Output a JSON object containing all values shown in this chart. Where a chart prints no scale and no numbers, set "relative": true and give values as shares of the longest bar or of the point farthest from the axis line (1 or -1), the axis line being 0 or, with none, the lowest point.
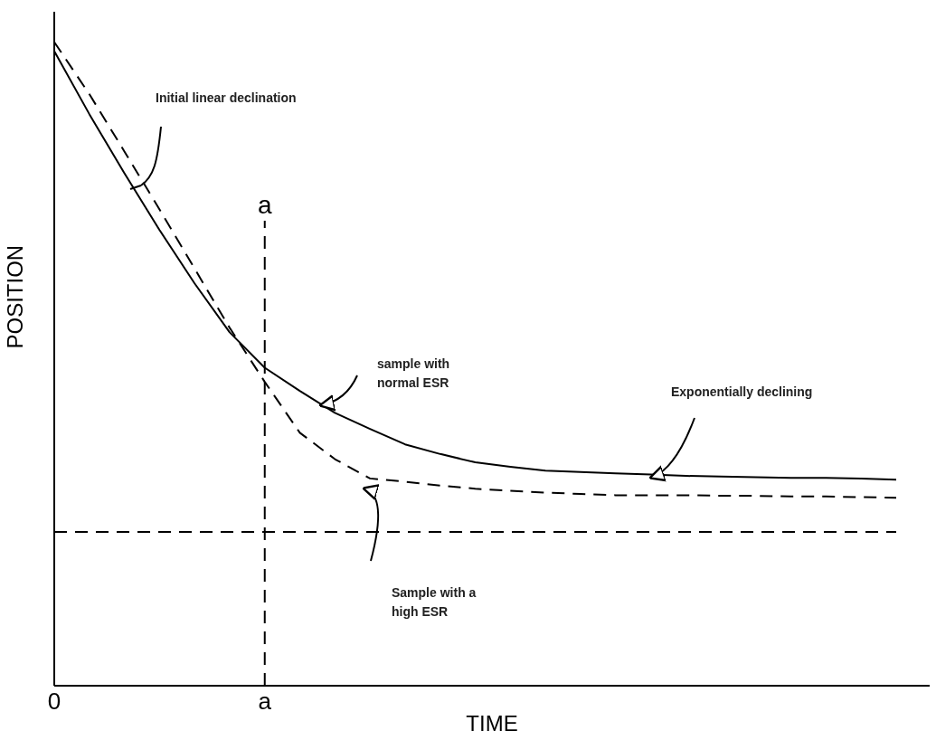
{
  "chart_data": {
    "type": "line",
    "relative": true,
    "xlabel": "TIME",
    "ylabel": "POSITION",
    "marker": "none",
    "grid": false,
    "legend": false,
    "categories": [
      "0",
      null,
      null,
      null,
      null,
      null,
      "a",
      null,
      null,
      null,
      null,
      null,
      null,
      null,
      null,
      null,
      null,
      null,
      null,
      null,
      null,
      null,
      null,
      null,
      null
    ],
    "series": [
      {
        "color": "#000000",
        "line_style": "solid",
        "values": [
          0.986,
          0.888,
          0.796,
          0.708,
          0.625,
          0.549,
          0.494,
          0.458,
          0.424,
          0.399,
          0.375,
          0.36,
          0.347,
          0.34,
          0.334,
          0.332,
          0.33,
          0.328,
          0.326,
          0.325,
          0.324,
          0.323,
          0.323,
          0.322,
          0.32
        ]
      },
      {
        "color": "#000000",
        "line_style": "dashed",
        "values": [
          1,
          0.919,
          0.83,
          0.74,
          0.648,
          0.556,
          0.472,
          0.393,
          0.352,
          0.322,
          0.317,
          0.311,
          0.306,
          0.303,
          0.3,
          0.298,
          0.296,
          0.296,
          0.296,
          0.295,
          0.295,
          0.294,
          0.294,
          0.293,
          0.292
        ]
      }
    ],
    "ref_lines": [
      {
        "axis": "x",
        "value": "a",
        "label": "a",
        "line_style": "dashed",
        "color": "#000000"
      },
      {
        "axis": "y",
        "value": 0.239,
        "line_style": "dashed",
        "color": "#000000"
      }
    ],
    "annotations": [
      "Initial linear declination",
      "sample with normal ESR",
      "Exponentially declining",
      "Sample with a high ESR"
    ]
  }
}
